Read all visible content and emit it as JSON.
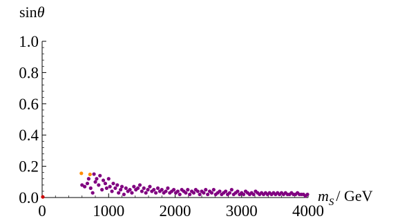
{
  "chart_data": {
    "type": "scatter",
    "title": "",
    "xlabel": "m_S / GeV",
    "xlabel_main": "m",
    "xlabel_sub": "S",
    "xlabel_unit": "/ GeV",
    "ylabel": "sinθ",
    "ylabel_fn": "sin",
    "ylabel_var": "θ",
    "xlim": [
      0,
      4000
    ],
    "ylim": [
      0,
      1.0
    ],
    "x_ticks": [
      0,
      1000,
      2000,
      3000,
      4000
    ],
    "x_tick_labels": [
      "0",
      "1000",
      "2000",
      "3000",
      "4000"
    ],
    "y_ticks": [
      0.0,
      0.2,
      0.4,
      0.6,
      0.8,
      1.0
    ],
    "y_tick_labels": [
      "0.0",
      "0.2",
      "0.4",
      "0.6",
      "0.8",
      "1.0"
    ],
    "grid": false,
    "legend": false,
    "colors": {
      "purple": "#800080",
      "orange": "#ff8c00",
      "red": "#cc0000"
    },
    "series": [
      {
        "color_key": "orange",
        "points": [
          [
            590,
            0.155
          ],
          [
            720,
            0.148
          ]
        ]
      },
      {
        "color_key": "red",
        "points": [
          [
            10,
            0.004
          ]
        ]
      },
      {
        "color_key": "purple",
        "points": [
          [
            600,
            0.08
          ],
          [
            640,
            0.07
          ],
          [
            680,
            0.09
          ],
          [
            700,
            0.12
          ],
          [
            730,
            0.06
          ],
          [
            760,
            0.03
          ],
          [
            780,
            0.15
          ],
          [
            800,
            0.1
          ],
          [
            820,
            0.12
          ],
          [
            850,
            0.08
          ],
          [
            870,
            0.14
          ],
          [
            900,
            0.05
          ],
          [
            920,
            0.11
          ],
          [
            950,
            0.09
          ],
          [
            970,
            0.06
          ],
          [
            1000,
            0.12
          ],
          [
            1020,
            0.07
          ],
          [
            1050,
            0.04
          ],
          [
            1070,
            0.09
          ],
          [
            1100,
            0.06
          ],
          [
            1130,
            0.08
          ],
          [
            1150,
            0.03
          ],
          [
            1180,
            0.05
          ],
          [
            1200,
            0.07
          ],
          [
            1230,
            0.02
          ],
          [
            1260,
            0.06
          ],
          [
            1290,
            0.04
          ],
          [
            1320,
            0.05
          ],
          [
            1350,
            0.03
          ],
          [
            1380,
            0.07
          ],
          [
            1410,
            0.05
          ],
          [
            1440,
            0.06
          ],
          [
            1470,
            0.08
          ],
          [
            1500,
            0.04
          ],
          [
            1530,
            0.06
          ],
          [
            1560,
            0.03
          ],
          [
            1590,
            0.05
          ],
          [
            1620,
            0.07
          ],
          [
            1650,
            0.04
          ],
          [
            1680,
            0.05
          ],
          [
            1710,
            0.03
          ],
          [
            1740,
            0.06
          ],
          [
            1770,
            0.04
          ],
          [
            1800,
            0.05
          ],
          [
            1830,
            0.03
          ],
          [
            1860,
            0.04
          ],
          [
            1890,
            0.06
          ],
          [
            1920,
            0.03
          ],
          [
            1950,
            0.04
          ],
          [
            1980,
            0.05
          ],
          [
            2010,
            0.03
          ],
          [
            2040,
            0.04
          ],
          [
            2070,
            0.02
          ],
          [
            2100,
            0.05
          ],
          [
            2130,
            0.04
          ],
          [
            2160,
            0.03
          ],
          [
            2190,
            0.05
          ],
          [
            2220,
            0.02
          ],
          [
            2250,
            0.04
          ],
          [
            2280,
            0.03
          ],
          [
            2310,
            0.05
          ],
          [
            2340,
            0.04
          ],
          [
            2370,
            0.02
          ],
          [
            2400,
            0.04
          ],
          [
            2430,
            0.03
          ],
          [
            2460,
            0.05
          ],
          [
            2490,
            0.02
          ],
          [
            2520,
            0.04
          ],
          [
            2550,
            0.03
          ],
          [
            2580,
            0.05
          ],
          [
            2610,
            0.02
          ],
          [
            2640,
            0.03
          ],
          [
            2670,
            0.04
          ],
          [
            2700,
            0.02
          ],
          [
            2730,
            0.03
          ],
          [
            2760,
            0.04
          ],
          [
            2790,
            0.02
          ],
          [
            2820,
            0.03
          ],
          [
            2850,
            0.05
          ],
          [
            2880,
            0.02
          ],
          [
            2910,
            0.03
          ],
          [
            2940,
            0.04
          ],
          [
            2970,
            0.02
          ],
          [
            3000,
            0.03
          ],
          [
            3030,
            0.02
          ],
          [
            3060,
            0.04
          ],
          [
            3090,
            0.03
          ],
          [
            3120,
            0.02
          ],
          [
            3150,
            0.03
          ],
          [
            3180,
            0.02
          ],
          [
            3210,
            0.04
          ],
          [
            3240,
            0.03
          ],
          [
            3270,
            0.02
          ],
          [
            3300,
            0.03
          ],
          [
            3330,
            0.02
          ],
          [
            3360,
            0.03
          ],
          [
            3390,
            0.02
          ],
          [
            3420,
            0.03
          ],
          [
            3450,
            0.02
          ],
          [
            3480,
            0.03
          ],
          [
            3510,
            0.02
          ],
          [
            3540,
            0.03
          ],
          [
            3570,
            0.02
          ],
          [
            3600,
            0.03
          ],
          [
            3630,
            0.02
          ],
          [
            3660,
            0.03
          ],
          [
            3690,
            0.02
          ],
          [
            3720,
            0.02
          ],
          [
            3750,
            0.03
          ],
          [
            3780,
            0.02
          ],
          [
            3810,
            0.02
          ],
          [
            3840,
            0.03
          ],
          [
            3870,
            0.02
          ],
          [
            3900,
            0.02
          ],
          [
            3930,
            0.02
          ],
          [
            3960,
            0.01
          ],
          [
            3990,
            0.02
          ]
        ]
      }
    ]
  }
}
